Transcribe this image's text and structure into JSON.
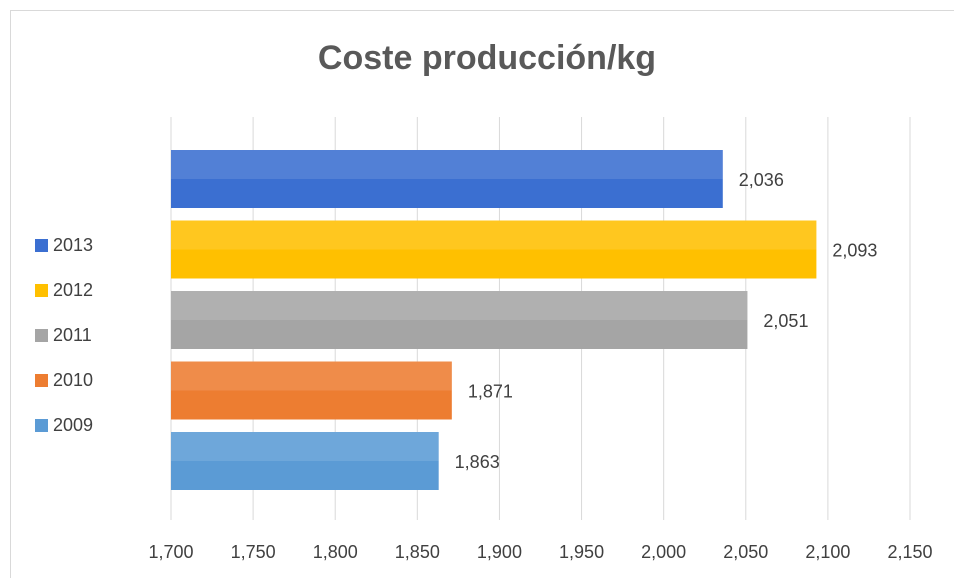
{
  "chart_data": {
    "type": "bar",
    "orientation": "horizontal",
    "title": "Coste producción/kg",
    "series": [
      {
        "name": "2013",
        "color": "#3b6fd1",
        "values": [
          2.036
        ],
        "value_labels": [
          "2,036"
        ]
      },
      {
        "name": "2012",
        "color": "#ffc000",
        "values": [
          2.093
        ],
        "value_labels": [
          "2,093"
        ]
      },
      {
        "name": "2011",
        "color": "#a5a5a5",
        "values": [
          2.051
        ],
        "value_labels": [
          "2,051"
        ]
      },
      {
        "name": "2010",
        "color": "#ed7d31",
        "values": [
          1.871
        ],
        "value_labels": [
          "1,871"
        ]
      },
      {
        "name": "2009",
        "color": "#5b9bd5",
        "values": [
          1.863
        ],
        "value_labels": [
          "1,863"
        ]
      }
    ],
    "xlim": [
      1.7,
      2.15
    ],
    "xticks": [
      {
        "value": 1.7,
        "label": "1,700"
      },
      {
        "value": 1.75,
        "label": "1,750"
      },
      {
        "value": 1.8,
        "label": "1,800"
      },
      {
        "value": 1.85,
        "label": "1,850"
      },
      {
        "value": 1.9,
        "label": "1,900"
      },
      {
        "value": 1.95,
        "label": "1,950"
      },
      {
        "value": 2.0,
        "label": "2,000"
      },
      {
        "value": 2.05,
        "label": "2,050"
      },
      {
        "value": 2.1,
        "label": "2,100"
      },
      {
        "value": 2.15,
        "label": "2,150"
      }
    ],
    "grid": true,
    "legend": "left"
  }
}
